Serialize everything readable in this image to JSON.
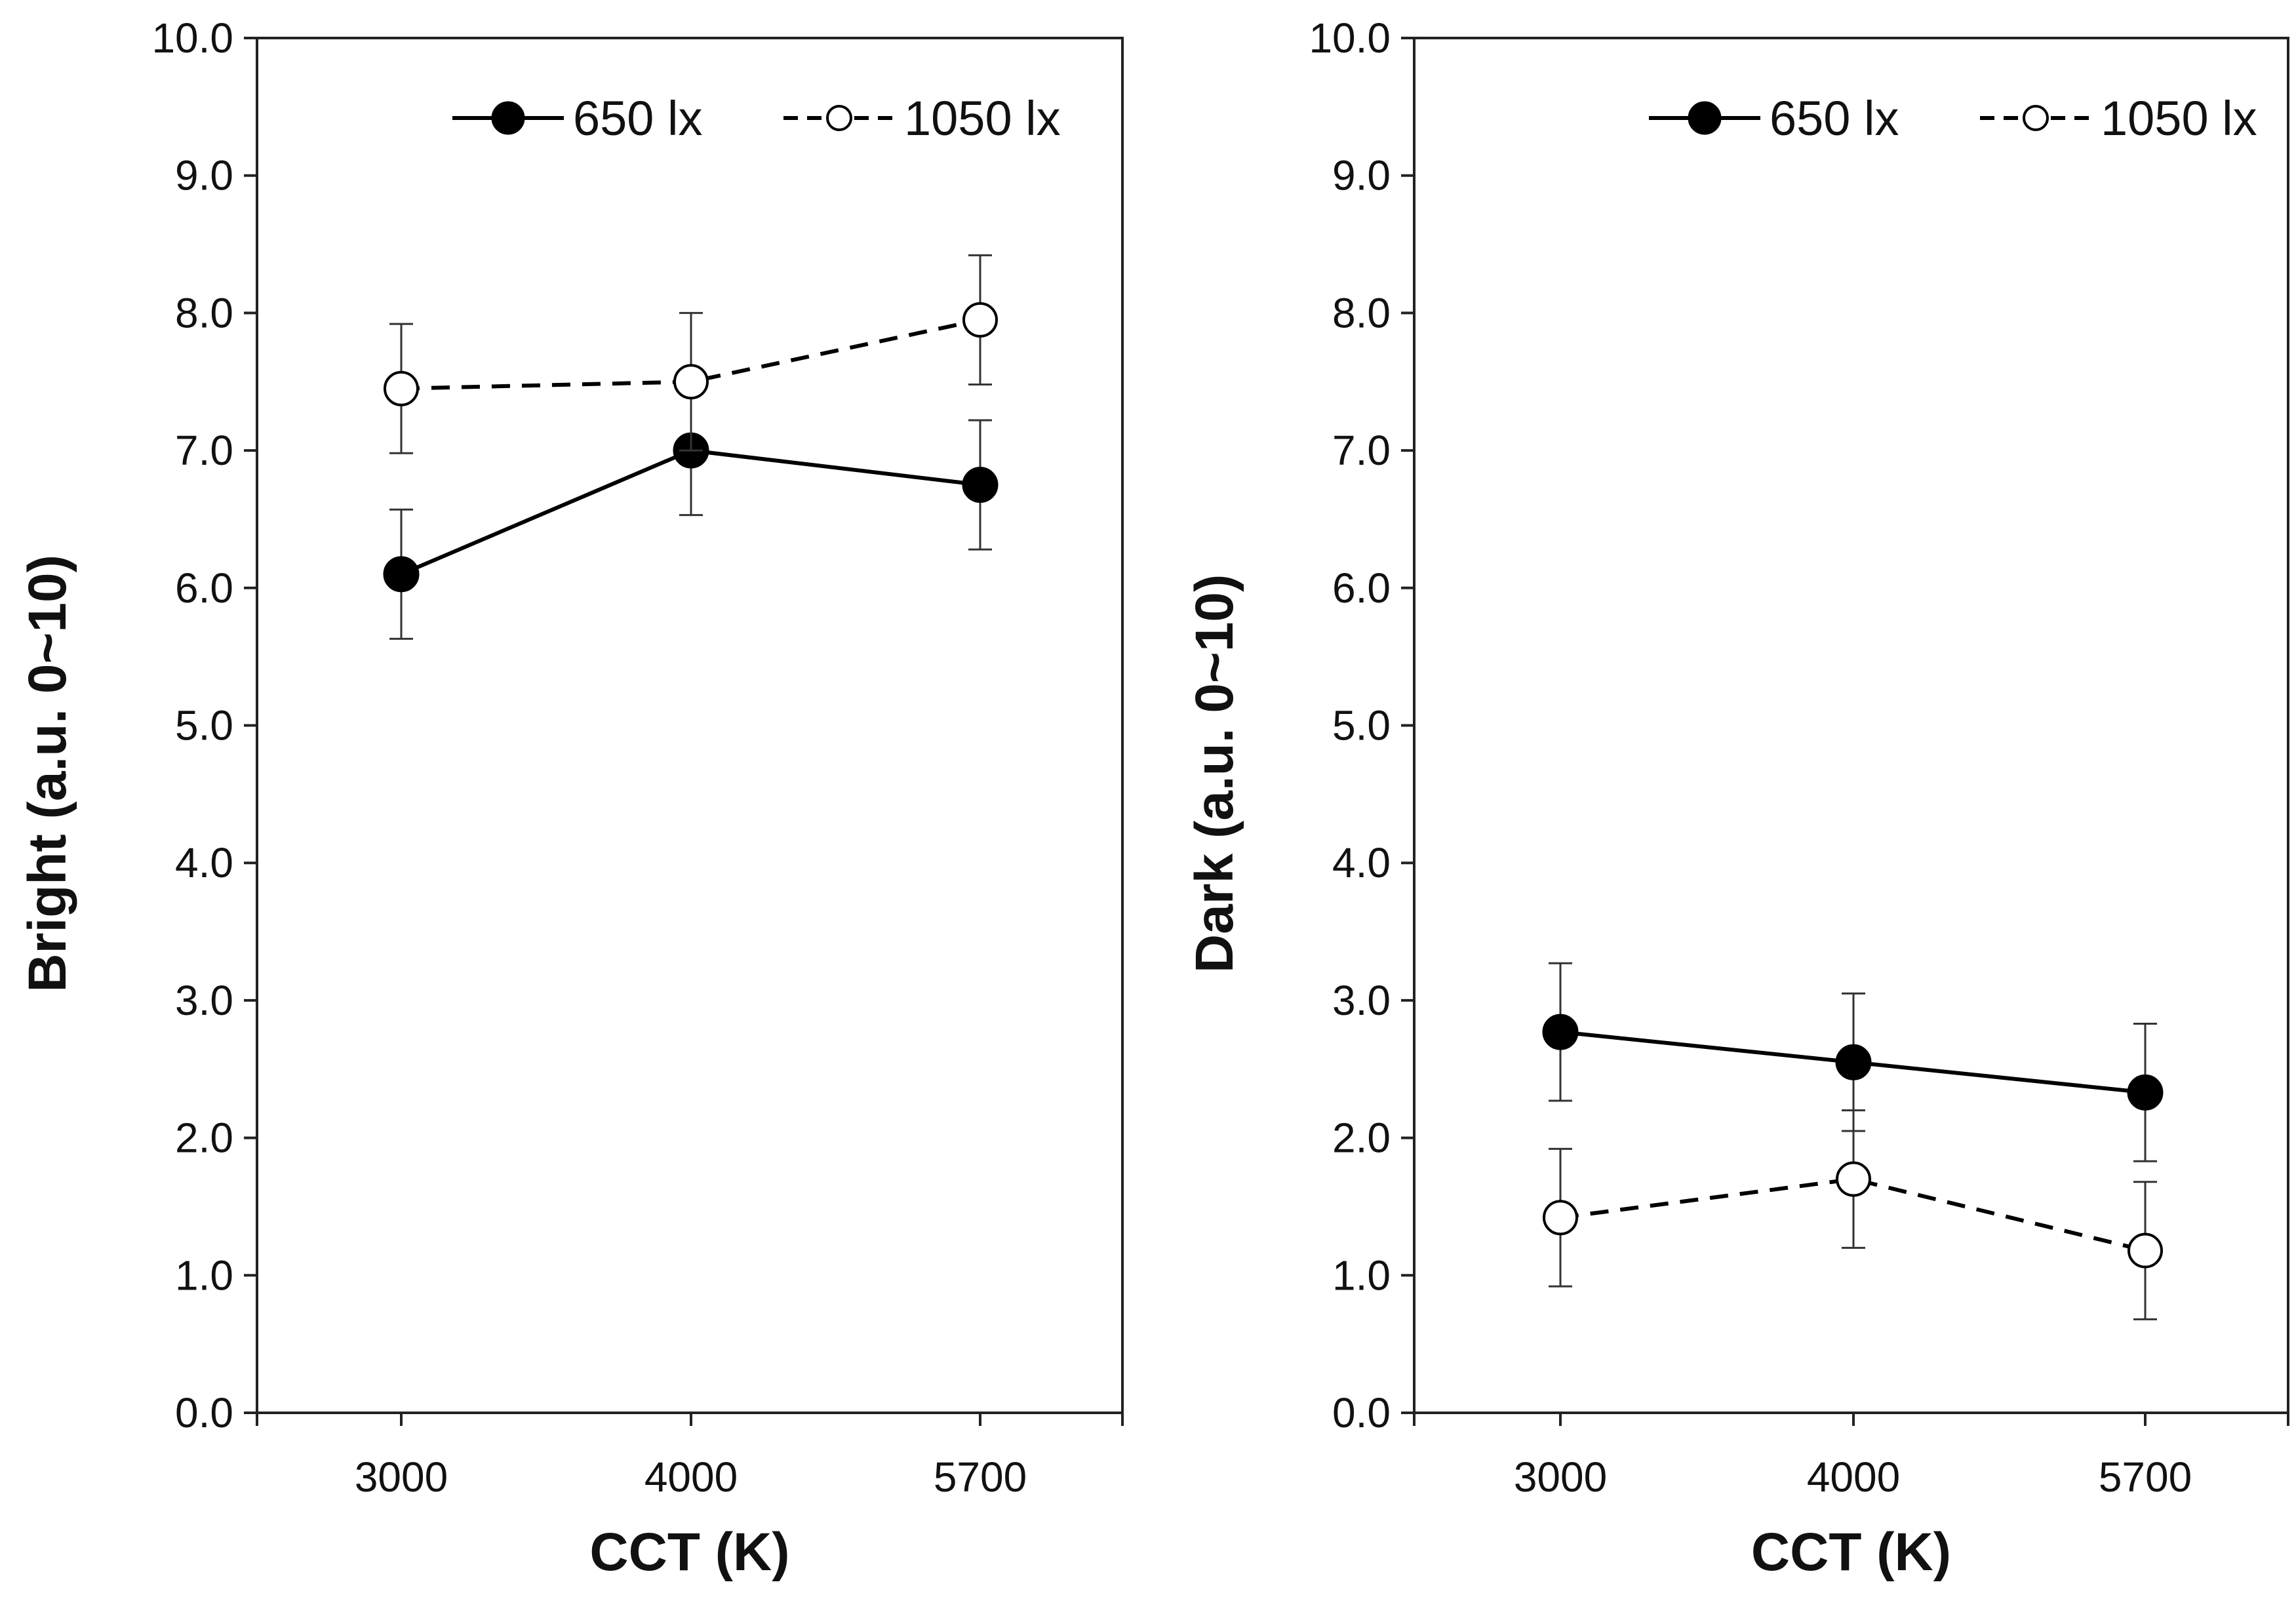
{
  "chart_data": [
    {
      "type": "line",
      "title": "",
      "xlabel": "CCT (K)",
      "ylabel": "Bright (a.u. 0~10)",
      "categories": [
        "3000",
        "4000",
        "5700"
      ],
      "ylim": [
        0,
        10
      ],
      "yticks": [
        "0.0",
        "1.0",
        "2.0",
        "3.0",
        "4.0",
        "5.0",
        "6.0",
        "7.0",
        "8.0",
        "9.0",
        "10.0"
      ],
      "grid": false,
      "legend_position": "top-right",
      "series": [
        {
          "name": "650 lx",
          "marker": "filled-circle",
          "line": "solid",
          "values": [
            6.1,
            7.0,
            6.75
          ],
          "error": [
            0.47,
            0.47,
            0.47
          ]
        },
        {
          "name": "1050 lx",
          "marker": "open-circle",
          "line": "dashed",
          "values": [
            7.45,
            7.5,
            7.95
          ],
          "error": [
            0.47,
            0.5,
            0.47
          ]
        }
      ]
    },
    {
      "type": "line",
      "title": "",
      "xlabel": "CCT (K)",
      "ylabel": "Dark (a.u. 0~10)",
      "categories": [
        "3000",
        "4000",
        "5700"
      ],
      "ylim": [
        0,
        10
      ],
      "yticks": [
        "0.0",
        "1.0",
        "2.0",
        "3.0",
        "4.0",
        "5.0",
        "6.0",
        "7.0",
        "8.0",
        "9.0",
        "10.0"
      ],
      "grid": false,
      "legend_position": "top-right",
      "series": [
        {
          "name": "650 lx",
          "marker": "filled-circle",
          "line": "solid",
          "values": [
            2.77,
            2.55,
            2.33
          ],
          "error": [
            0.5,
            0.5,
            0.5
          ]
        },
        {
          "name": "1050 lx",
          "marker": "open-circle",
          "line": "dashed",
          "values": [
            1.42,
            1.7,
            1.18
          ],
          "error": [
            0.5,
            0.5,
            0.5
          ]
        }
      ]
    }
  ]
}
